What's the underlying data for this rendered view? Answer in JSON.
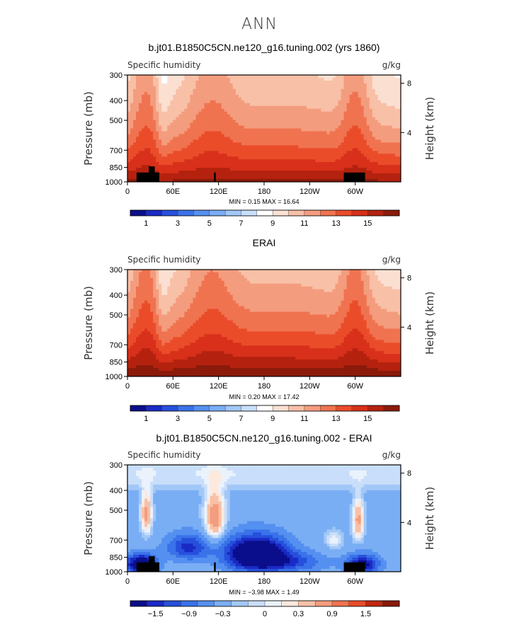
{
  "figure_title": "ANN",
  "colors": {
    "full_palette": [
      "#0b0e8c",
      "#1a2ac4",
      "#2650dc",
      "#3a72ea",
      "#5590f0",
      "#7aaef4",
      "#a2c8f7",
      "#c9defa",
      "#ffffff",
      "#fbe0d2",
      "#f8c0a6",
      "#f49c7e",
      "#f07350",
      "#ea4c2a",
      "#d8301a",
      "#b4220f",
      "#8b1a0a"
    ],
    "diff_palette": [
      "#0b0e8c",
      "#1a2ac4",
      "#2650dc",
      "#3a72ea",
      "#5590f0",
      "#7aaef4",
      "#a2c8f7",
      "#c9defa",
      "#eaf2fc",
      "#fde8dc",
      "#f8c0a6",
      "#f49c7e",
      "#f07350",
      "#ea4c2a",
      "#c0280f",
      "#8b1a0a"
    ],
    "land": "#000000"
  },
  "chart_data": [
    {
      "type": "heatmap",
      "title": "b.jt01.B1850C5CN.ne120_g16.tuning.002 (yrs 1860)",
      "left_label": "Specific humidity",
      "right_label": "g/kg",
      "ylabel": "Pressure (mb)",
      "y2label": "Height (km)",
      "yticks": [
        "300",
        "400",
        "500",
        "700",
        "850",
        "1000"
      ],
      "y2ticks": [
        "8",
        "4"
      ],
      "xticks": [
        "0",
        "60E",
        "120E",
        "180",
        "120W",
        "60W"
      ],
      "xlim": [
        0,
        360
      ],
      "ylim": [
        1000,
        300
      ],
      "stats": "MIN =    0.15   MAX =   16.64",
      "colorbar_labels": [
        "1",
        "3",
        "5",
        "7",
        "9",
        "11",
        "13",
        "15"
      ],
      "mode": "full",
      "min": 0.15,
      "max": 16.64
    },
    {
      "type": "heatmap",
      "title": "ERAI",
      "left_label": "Specific humidity",
      "right_label": "g/kg",
      "ylabel": "Pressure (mb)",
      "y2label": "Height (km)",
      "yticks": [
        "300",
        "400",
        "500",
        "700",
        "850",
        "1000"
      ],
      "y2ticks": [
        "8",
        "4"
      ],
      "xticks": [
        "0",
        "60E",
        "120E",
        "180",
        "120W",
        "60W"
      ],
      "xlim": [
        0,
        360
      ],
      "ylim": [
        1000,
        300
      ],
      "stats": "MIN =    0.20   MAX =   17.42",
      "colorbar_labels": [
        "1",
        "3",
        "5",
        "7",
        "9",
        "11",
        "13",
        "15"
      ],
      "mode": "full",
      "min": 0.2,
      "max": 17.42
    },
    {
      "type": "heatmap",
      "title": "b.jt01.B1850C5CN.ne120_g16.tuning.002 - ERAI",
      "left_label": "Specific humidity",
      "right_label": "g/kg",
      "ylabel": "Pressure (mb)",
      "y2label": "Height (km)",
      "yticks": [
        "300",
        "400",
        "500",
        "700",
        "850",
        "1000"
      ],
      "y2ticks": [
        "8",
        "4"
      ],
      "xticks": [
        "0",
        "60E",
        "120E",
        "180",
        "120W",
        "60W"
      ],
      "xlim": [
        0,
        360
      ],
      "ylim": [
        1000,
        300
      ],
      "stats": "MIN =   −3.98   MAX =    1.49",
      "colorbar_labels": [
        "−1.5",
        "−0.9",
        "−0.3",
        "0",
        "0.3",
        "0.9",
        "1.5"
      ],
      "mode": "diff",
      "min": -3.98,
      "max": 1.49
    }
  ]
}
